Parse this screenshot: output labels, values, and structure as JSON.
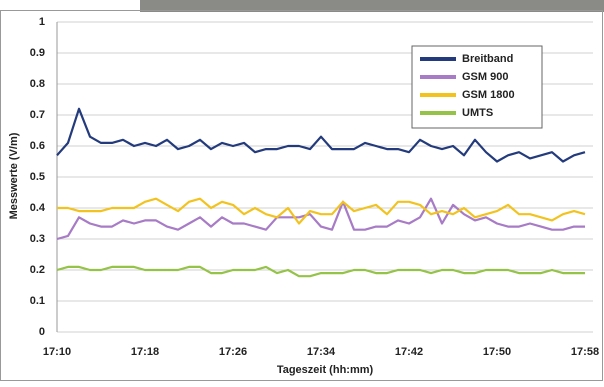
{
  "chart_data": {
    "type": "line",
    "xlabel": "Tageszeit (hh:mm)",
    "ylabel": "Messwerte (V/m)",
    "categories": [
      "17:10",
      null,
      null,
      null,
      null,
      null,
      null,
      null,
      "17:18",
      null,
      null,
      null,
      null,
      null,
      null,
      null,
      "17:26",
      null,
      null,
      null,
      null,
      null,
      null,
      null,
      "17:34",
      null,
      null,
      null,
      null,
      null,
      null,
      null,
      "17:42",
      null,
      null,
      null,
      null,
      null,
      null,
      null,
      "17:50",
      null,
      null,
      null,
      null,
      null,
      null,
      null,
      "17:58"
    ],
    "ylim": [
      0,
      1
    ],
    "yticks": [
      0,
      0.1,
      0.2,
      0.3,
      0.4,
      0.5,
      0.6,
      0.7,
      0.8,
      0.9,
      1
    ],
    "grid": true,
    "legend": "upper right",
    "series": [
      {
        "name": "Breitband",
        "color": "#233b7c",
        "values": [
          0.57,
          0.61,
          0.72,
          0.63,
          0.61,
          0.61,
          0.62,
          0.6,
          0.61,
          0.6,
          0.62,
          0.59,
          0.6,
          0.62,
          0.59,
          0.61,
          0.6,
          0.61,
          0.58,
          0.59,
          0.59,
          0.6,
          0.6,
          0.59,
          0.63,
          0.59,
          0.59,
          0.59,
          0.61,
          0.6,
          0.59,
          0.59,
          0.58,
          0.62,
          0.6,
          0.59,
          0.6,
          0.57,
          0.62,
          0.58,
          0.55,
          0.57,
          0.58,
          0.56,
          0.57,
          0.58,
          0.55,
          0.57,
          0.58
        ]
      },
      {
        "name": "GSM 900",
        "color": "#a77bc6",
        "values": [
          0.3,
          0.31,
          0.37,
          0.35,
          0.34,
          0.34,
          0.36,
          0.35,
          0.36,
          0.36,
          0.34,
          0.33,
          0.35,
          0.37,
          0.34,
          0.37,
          0.35,
          0.35,
          0.34,
          0.33,
          0.37,
          0.37,
          0.37,
          0.38,
          0.34,
          0.33,
          0.42,
          0.33,
          0.33,
          0.34,
          0.34,
          0.36,
          0.35,
          0.37,
          0.43,
          0.35,
          0.41,
          0.38,
          0.36,
          0.37,
          0.35,
          0.34,
          0.34,
          0.35,
          0.34,
          0.33,
          0.33,
          0.34,
          0.34
        ]
      },
      {
        "name": "GSM 1800",
        "color": "#f2c31f",
        "values": [
          0.4,
          0.4,
          0.39,
          0.39,
          0.39,
          0.4,
          0.4,
          0.4,
          0.42,
          0.43,
          0.41,
          0.39,
          0.42,
          0.43,
          0.4,
          0.42,
          0.41,
          0.38,
          0.4,
          0.38,
          0.37,
          0.4,
          0.35,
          0.39,
          0.38,
          0.38,
          0.42,
          0.39,
          0.4,
          0.41,
          0.38,
          0.42,
          0.42,
          0.41,
          0.38,
          0.39,
          0.38,
          0.4,
          0.37,
          0.38,
          0.39,
          0.41,
          0.38,
          0.38,
          0.37,
          0.36,
          0.38,
          0.39,
          0.38
        ]
      },
      {
        "name": "UMTS",
        "color": "#94c347",
        "values": [
          0.2,
          0.21,
          0.21,
          0.2,
          0.2,
          0.21,
          0.21,
          0.21,
          0.2,
          0.2,
          0.2,
          0.2,
          0.21,
          0.21,
          0.19,
          0.19,
          0.2,
          0.2,
          0.2,
          0.21,
          0.19,
          0.2,
          0.18,
          0.18,
          0.19,
          0.19,
          0.19,
          0.2,
          0.2,
          0.19,
          0.19,
          0.2,
          0.2,
          0.2,
          0.19,
          0.2,
          0.2,
          0.19,
          0.19,
          0.2,
          0.2,
          0.2,
          0.19,
          0.19,
          0.19,
          0.2,
          0.19,
          0.19,
          0.19
        ]
      }
    ]
  }
}
